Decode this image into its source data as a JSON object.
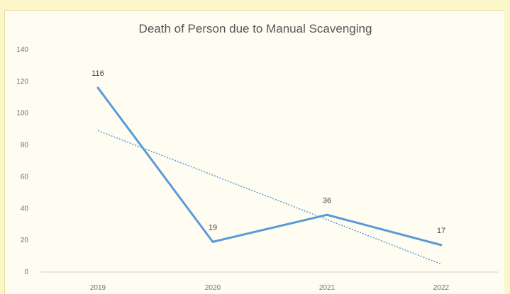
{
  "chart_data": {
    "type": "line",
    "title": "Death of Person due to Manual Scavenging",
    "categories": [
      "2019",
      "2020",
      "2021",
      "2022"
    ],
    "series": [
      {
        "values": [
          116,
          19,
          36,
          17
        ],
        "color": "#5b9bd5",
        "data_labels": [
          "116",
          "19",
          "36",
          "17"
        ]
      },
      {
        "type": "linear-trendline",
        "values": [
          89,
          61,
          33,
          5
        ],
        "color": "#5b9bd5",
        "style": "dotted"
      }
    ],
    "ylim": [
      0,
      140
    ],
    "yticks": [
      "0",
      "20",
      "40",
      "60",
      "80",
      "100",
      "120",
      "140"
    ],
    "grid": false,
    "legend": "none"
  }
}
